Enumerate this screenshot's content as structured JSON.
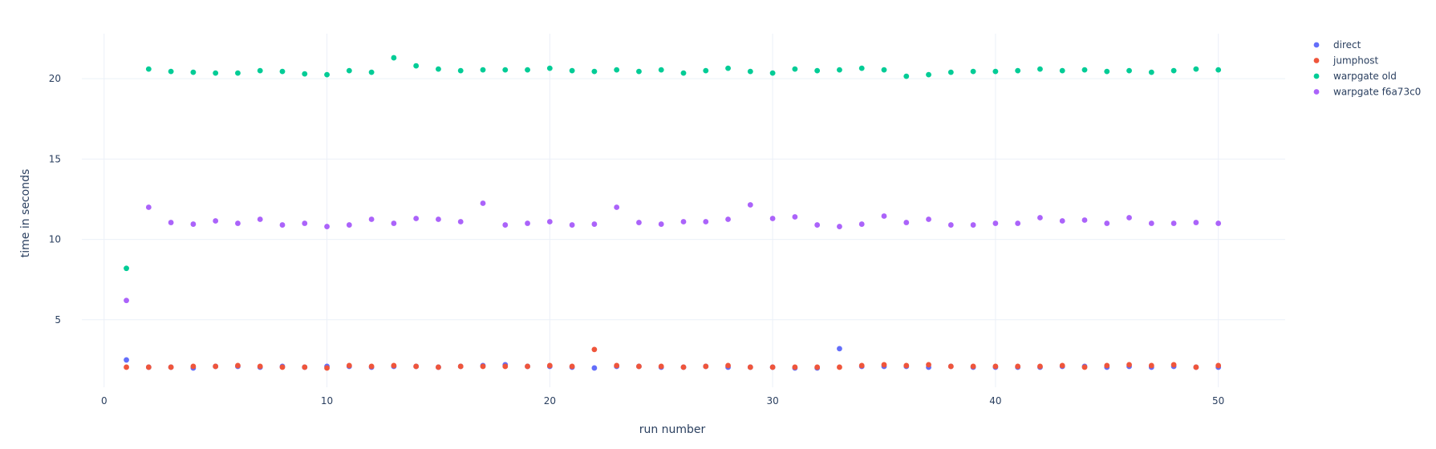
{
  "chart_data": {
    "type": "scatter",
    "title": "",
    "xlabel": "run number",
    "ylabel": "time in seconds",
    "xlim": [
      -1,
      53
    ],
    "ylim": [
      0.8,
      22.8
    ],
    "x_ticks": [
      0,
      10,
      20,
      30,
      40,
      50
    ],
    "x_tick_labels": [
      "0",
      "10",
      "20",
      "30",
      "40",
      "50"
    ],
    "y_ticks": [
      5,
      10,
      15,
      20
    ],
    "y_tick_labels": [
      "5",
      "10",
      "15",
      "20"
    ],
    "grid": true,
    "legend_position": "top-right",
    "x": [
      1,
      2,
      3,
      4,
      5,
      6,
      7,
      8,
      9,
      10,
      11,
      12,
      13,
      14,
      15,
      16,
      17,
      18,
      19,
      20,
      21,
      22,
      23,
      24,
      25,
      26,
      27,
      28,
      29,
      30,
      31,
      32,
      33,
      34,
      35,
      36,
      37,
      38,
      39,
      40,
      41,
      42,
      43,
      44,
      45,
      46,
      47,
      48,
      49,
      50
    ],
    "series": [
      {
        "name": "direct",
        "color": "#636efa",
        "values": [
          2.5,
          2.05,
          2.05,
          2.0,
          2.1,
          2.1,
          2.05,
          2.1,
          2.05,
          2.1,
          2.1,
          2.05,
          2.1,
          2.1,
          2.05,
          2.1,
          2.15,
          2.2,
          2.1,
          2.1,
          2.05,
          2.0,
          2.1,
          2.1,
          2.05,
          2.05,
          2.1,
          2.05,
          2.05,
          2.05,
          2.0,
          2.0,
          3.2,
          2.1,
          2.1,
          2.1,
          2.05,
          2.1,
          2.05,
          2.05,
          2.05,
          2.05,
          2.1,
          2.1,
          2.05,
          2.1,
          2.05,
          2.1,
          2.05,
          2.05
        ]
      },
      {
        "name": "jumphost",
        "color": "#ef553b",
        "values": [
          2.05,
          2.05,
          2.05,
          2.1,
          2.1,
          2.15,
          2.1,
          2.05,
          2.05,
          2.0,
          2.15,
          2.1,
          2.15,
          2.1,
          2.05,
          2.1,
          2.1,
          2.1,
          2.1,
          2.15,
          2.1,
          3.15,
          2.15,
          2.1,
          2.1,
          2.05,
          2.1,
          2.15,
          2.05,
          2.05,
          2.05,
          2.05,
          2.05,
          2.15,
          2.2,
          2.15,
          2.2,
          2.1,
          2.1,
          2.1,
          2.1,
          2.1,
          2.15,
          2.05,
          2.15,
          2.2,
          2.15,
          2.2,
          2.05,
          2.15
        ]
      },
      {
        "name": "warpgate old",
        "color": "#00cc96",
        "values": [
          8.2,
          20.6,
          20.45,
          20.4,
          20.35,
          20.35,
          20.5,
          20.45,
          20.3,
          20.25,
          20.5,
          20.4,
          21.3,
          20.8,
          20.6,
          20.5,
          20.55,
          20.55,
          20.55,
          20.65,
          20.5,
          20.45,
          20.55,
          20.45,
          20.55,
          20.35,
          20.5,
          20.65,
          20.45,
          20.35,
          20.6,
          20.5,
          20.55,
          20.65,
          20.55,
          20.15,
          20.25,
          20.4,
          20.45,
          20.45,
          20.5,
          20.6,
          20.5,
          20.55,
          20.45,
          20.5,
          20.4,
          20.5,
          20.6,
          20.55
        ]
      },
      {
        "name": "warpgate f6a73c0",
        "color": "#ab63fa",
        "values": [
          6.2,
          12.0,
          11.05,
          10.95,
          11.15,
          11.0,
          11.25,
          10.9,
          11.0,
          10.8,
          10.9,
          11.25,
          11.0,
          11.3,
          11.25,
          11.1,
          12.25,
          10.9,
          11.0,
          11.1,
          10.9,
          10.95,
          12.0,
          11.05,
          10.95,
          11.1,
          11.1,
          11.25,
          12.15,
          11.3,
          11.4,
          10.9,
          10.8,
          10.95,
          11.45,
          11.05,
          11.25,
          10.9,
          10.9,
          11.0,
          11.0,
          11.35,
          11.15,
          11.2,
          11.0,
          11.35,
          11.0,
          11.0,
          11.05,
          11.0
        ]
      }
    ]
  }
}
